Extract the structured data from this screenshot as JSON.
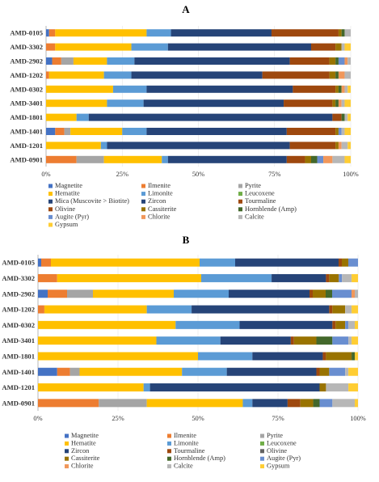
{
  "colors": {
    "Magnetite": "#4472c4",
    "Ilmenite": "#ed7d31",
    "Pyrite": "#a5a5a5",
    "Hematite": "#ffc000",
    "Limonite": "#5b9bd5",
    "Leucoxene": "#70ad47",
    "Mica (Muscovite > Biotite)": "#264478",
    "Zircon": "#264478",
    "Tourmaline": "#9e480e",
    "Olivine": "#9e480e",
    "Cassiterite": "#997300",
    "Hornblende (Amp)": "#43682b",
    "Augite (Pyr)": "#698ed0",
    "Chlorite": "#f1975a",
    "Calcite": "#b7b7b7",
    "Gypsum": "#ffcd33",
    "Olivine_B": "#636363"
  },
  "chart_data": [
    {
      "panel": "A",
      "type": "bar",
      "orientation": "horizontal",
      "stacked": "percent",
      "categories": [
        "AMD-0105",
        "AMD-3302",
        "AMD-2902",
        "AMD-1202",
        "AMD-0302",
        "AMD-3401",
        "AMD-1801",
        "AMD-1401",
        "AMD-1201",
        "AMD-0901"
      ],
      "xlim": [
        0,
        100
      ],
      "xticks": [
        "0%",
        "25%",
        "50%",
        "75%",
        "100%"
      ],
      "legend_position": "bottom",
      "legend": [
        "Magnetite",
        "Ilmenite",
        "Pyrite",
        "Hematite",
        "Limonite",
        "Leucoxene",
        "Mica (Muscovite > Biotite)",
        "Zircon",
        "Tourmaline",
        "Olivine",
        "Cassiterite",
        "Hornblende (Amp)",
        "Augite (Pyr)",
        "Chlorite",
        "Calcite",
        "Gypsum"
      ],
      "series": [
        {
          "name": "Magnetite",
          "values": [
            1,
            0,
            2,
            0,
            0,
            0,
            0,
            3,
            0,
            0
          ]
        },
        {
          "name": "Ilmenite",
          "values": [
            2,
            3,
            3,
            1,
            0,
            0,
            0,
            3,
            0,
            10
          ]
        },
        {
          "name": "Pyrite",
          "values": [
            0,
            0,
            4,
            0,
            0,
            0,
            0,
            2,
            0,
            9
          ]
        },
        {
          "name": "Hematite",
          "values": [
            30,
            25,
            11,
            18,
            22,
            20,
            10,
            17,
            18,
            19
          ]
        },
        {
          "name": "Limonite",
          "values": [
            8,
            12,
            9,
            9,
            11,
            12,
            4,
            8,
            2,
            2
          ]
        },
        {
          "name": "Leucoxene",
          "values": [
            0,
            0,
            0,
            0,
            0,
            0,
            0,
            0,
            0,
            0
          ]
        },
        {
          "name": "Mica (Muscovite > Biotite)",
          "values": [
            33,
            47,
            51,
            43,
            48,
            46,
            80,
            46,
            60,
            39
          ]
        },
        {
          "name": "Zircon",
          "values": [
            0,
            0,
            0,
            0,
            0,
            0,
            0,
            0,
            0,
            0
          ]
        },
        {
          "name": "Tourmaline",
          "values": [
            22,
            8,
            13,
            22,
            14,
            16,
            3,
            16,
            15,
            6
          ]
        },
        {
          "name": "Olivine",
          "values": [
            0,
            0,
            0,
            0,
            0,
            0,
            0,
            0,
            0,
            0
          ]
        },
        {
          "name": "Cassiterite",
          "values": [
            1,
            2,
            2,
            2,
            1,
            1,
            0,
            1,
            1,
            2
          ]
        },
        {
          "name": "Hornblende (Amp)",
          "values": [
            1,
            0,
            1,
            1,
            1,
            1,
            1,
            0,
            0,
            2
          ]
        },
        {
          "name": "Augite (Pyr)",
          "values": [
            0,
            0,
            2,
            0,
            0,
            0,
            0,
            1,
            0,
            2
          ]
        },
        {
          "name": "Chlorite",
          "values": [
            0,
            0,
            1,
            2,
            1,
            1,
            0,
            0,
            1,
            3
          ]
        },
        {
          "name": "Calcite",
          "values": [
            2,
            1,
            1,
            2,
            1,
            1,
            1,
            1,
            2,
            4
          ]
        },
        {
          "name": "Gypsum",
          "values": [
            0,
            2,
            0,
            0,
            1,
            2,
            1,
            2,
            1,
            2
          ]
        }
      ]
    },
    {
      "panel": "B",
      "type": "bar",
      "orientation": "horizontal",
      "stacked": "percent",
      "categories": [
        "AMD-0105",
        "AMD-3302",
        "AMD-2902",
        "AMD-1202",
        "AMD-0302",
        "AMD-3401",
        "AMD-1801",
        "AMD-1401",
        "AMD-1201",
        "AMD-0901"
      ],
      "xlim": [
        0,
        100
      ],
      "xticks": [
        "0%",
        "25%",
        "50%",
        "75%",
        "100%"
      ],
      "legend_position": "bottom",
      "legend": [
        "Magnetite",
        "Ilmenite",
        "Pyrite",
        "Hematite",
        "Limonite",
        "Leucoxene",
        "Zircon",
        "Tourmaline",
        "Olivine",
        "Cassiterite",
        "Hornblende (Amp)",
        "Augite (Pyr)",
        "Chlorite",
        "Calcite",
        "Gypsum"
      ],
      "series": [
        {
          "name": "Magnetite",
          "values": [
            1,
            0,
            3,
            0,
            0,
            0,
            0,
            6,
            0,
            0
          ]
        },
        {
          "name": "Ilmenite",
          "values": [
            3,
            6,
            6,
            2,
            0,
            0,
            0,
            4,
            0,
            19
          ]
        },
        {
          "name": "Pyrite",
          "values": [
            0,
            0,
            8,
            0,
            0,
            0,
            0,
            3,
            0,
            15
          ]
        },
        {
          "name": "Hematite",
          "values": [
            46,
            45,
            25,
            32,
            43,
            37,
            50,
            32,
            33,
            30
          ]
        },
        {
          "name": "Limonite",
          "values": [
            11,
            22,
            17,
            14,
            20,
            20,
            17,
            14,
            2,
            3
          ]
        },
        {
          "name": "Leucoxene",
          "values": [
            0,
            0,
            0,
            0,
            0,
            0,
            0,
            0,
            0,
            0
          ]
        },
        {
          "name": "Zircon",
          "values": [
            32,
            17,
            25,
            43,
            29,
            22,
            22,
            28,
            53,
            11
          ]
        },
        {
          "name": "Tourmaline",
          "values": [
            1,
            1,
            1,
            1,
            1,
            1,
            1,
            1,
            0,
            4
          ]
        },
        {
          "name": "Olivine",
          "values": [
            0,
            0,
            0,
            0,
            0,
            0,
            0,
            0,
            0,
            0
          ]
        },
        {
          "name": "Cassiterite",
          "values": [
            2,
            3,
            4,
            4,
            3,
            7,
            8,
            3,
            2,
            4
          ]
        },
        {
          "name": "Hornblende (Amp)",
          "values": [
            0,
            0,
            2,
            0,
            0,
            5,
            1,
            0,
            0,
            2
          ]
        },
        {
          "name": "Augite (Pyr)",
          "values": [
            3,
            1,
            6,
            0,
            1,
            5,
            0,
            5,
            0,
            4
          ]
        },
        {
          "name": "Chlorite",
          "values": [
            0,
            0,
            1,
            0,
            0,
            0,
            0,
            0,
            0,
            0
          ]
        },
        {
          "name": "Calcite",
          "values": [
            0,
            3,
            1,
            2,
            2,
            1,
            0,
            1,
            7,
            7
          ]
        },
        {
          "name": "Gypsum",
          "values": [
            0,
            2,
            0,
            2,
            1,
            2,
            1,
            3,
            3,
            1
          ]
        }
      ]
    }
  ]
}
